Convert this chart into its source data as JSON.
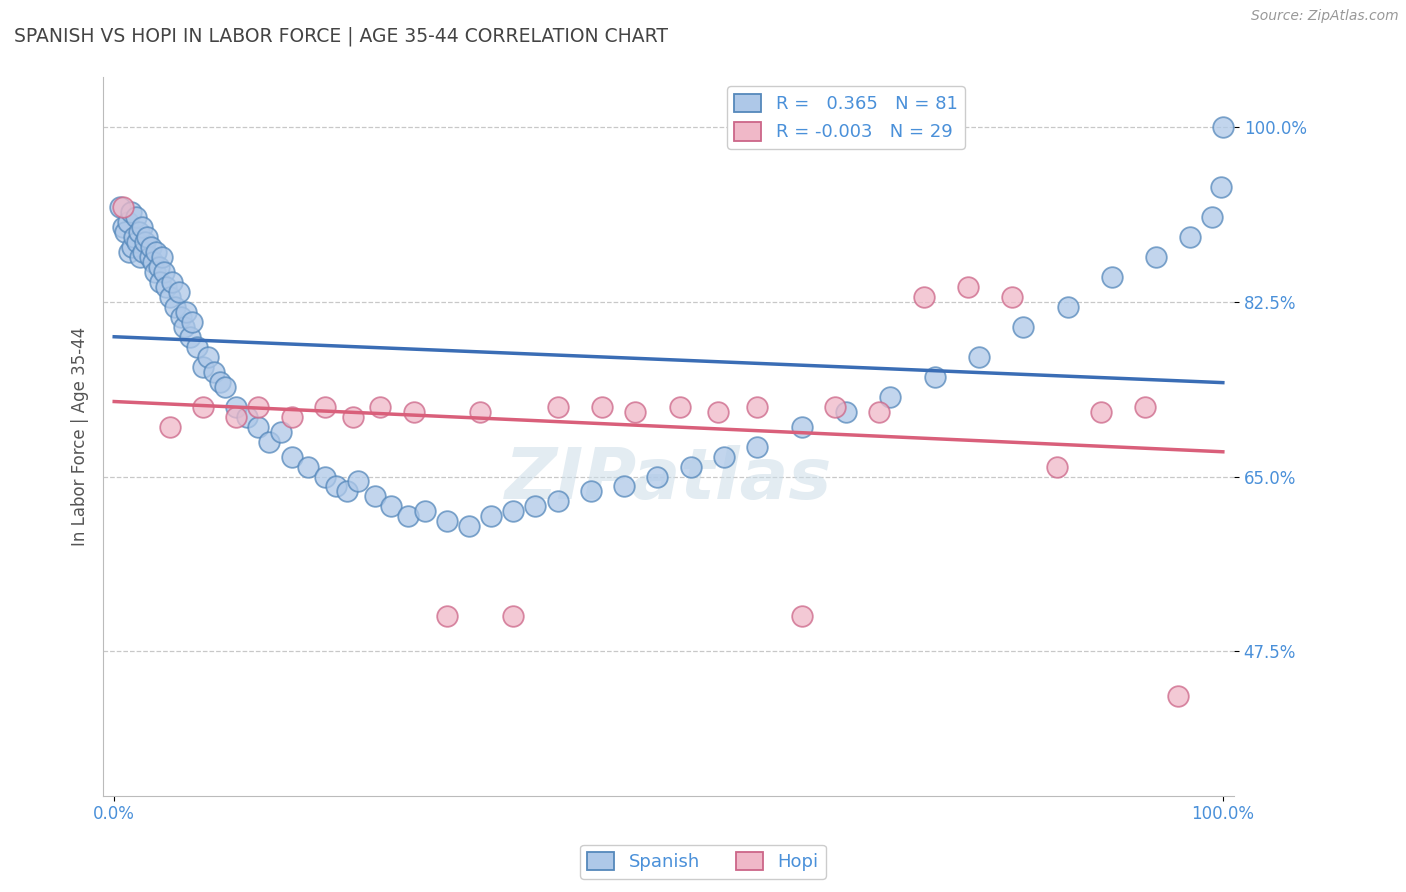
{
  "title": "SPANISH VS HOPI IN LABOR FORCE | AGE 35-44 CORRELATION CHART",
  "source": "Source: ZipAtlas.com",
  "ylabel": "In Labor Force | Age 35-44",
  "spanish_R": 0.365,
  "spanish_N": 81,
  "hopi_R": -0.003,
  "hopi_N": 29,
  "blue_fill": "#aec8e8",
  "blue_edge": "#5588bb",
  "pink_fill": "#f0b8c8",
  "pink_edge": "#cc6688",
  "blue_line_color": "#3a6db5",
  "pink_line_color": "#d95f7a",
  "background_color": "#ffffff",
  "grid_color": "#c8c8c8",
  "tick_color": "#4a90d9",
  "title_color": "#444444",
  "ylabel_color": "#555555",
  "watermark": "ZIPatlas",
  "xlim": [
    -0.01,
    1.01
  ],
  "ylim": [
    0.33,
    1.05
  ],
  "ytick_positions": [
    0.475,
    0.65,
    0.825,
    1.0
  ],
  "ytick_labels": [
    "47.5%",
    "65.0%",
    "82.5%",
    "100.0%"
  ],
  "xtick_positions": [
    0.0,
    1.0
  ],
  "xtick_labels": [
    "0.0%",
    "100.0%"
  ],
  "spanish_x": [
    0.005,
    0.008,
    0.01,
    0.012,
    0.013,
    0.015,
    0.016,
    0.018,
    0.02,
    0.021,
    0.022,
    0.023,
    0.025,
    0.026,
    0.028,
    0.03,
    0.032,
    0.033,
    0.035,
    0.037,
    0.038,
    0.04,
    0.041,
    0.043,
    0.045,
    0.047,
    0.05,
    0.052,
    0.055,
    0.058,
    0.06,
    0.063,
    0.065,
    0.068,
    0.07,
    0.075,
    0.08,
    0.085,
    0.09,
    0.095,
    0.1,
    0.11,
    0.12,
    0.13,
    0.14,
    0.15,
    0.16,
    0.175,
    0.19,
    0.2,
    0.21,
    0.22,
    0.235,
    0.25,
    0.265,
    0.28,
    0.3,
    0.32,
    0.34,
    0.36,
    0.38,
    0.4,
    0.43,
    0.46,
    0.49,
    0.52,
    0.55,
    0.58,
    0.62,
    0.66,
    0.7,
    0.74,
    0.78,
    0.82,
    0.86,
    0.9,
    0.94,
    0.97,
    0.99,
    0.998,
    1.0
  ],
  "spanish_y": [
    0.92,
    0.9,
    0.895,
    0.905,
    0.875,
    0.915,
    0.88,
    0.89,
    0.91,
    0.885,
    0.895,
    0.87,
    0.9,
    0.875,
    0.885,
    0.89,
    0.87,
    0.88,
    0.865,
    0.855,
    0.875,
    0.86,
    0.845,
    0.87,
    0.855,
    0.84,
    0.83,
    0.845,
    0.82,
    0.835,
    0.81,
    0.8,
    0.815,
    0.79,
    0.805,
    0.78,
    0.76,
    0.77,
    0.755,
    0.745,
    0.74,
    0.72,
    0.71,
    0.7,
    0.685,
    0.695,
    0.67,
    0.66,
    0.65,
    0.64,
    0.635,
    0.645,
    0.63,
    0.62,
    0.61,
    0.615,
    0.605,
    0.6,
    0.61,
    0.615,
    0.62,
    0.625,
    0.635,
    0.64,
    0.65,
    0.66,
    0.67,
    0.68,
    0.7,
    0.715,
    0.73,
    0.75,
    0.77,
    0.8,
    0.82,
    0.85,
    0.87,
    0.89,
    0.91,
    0.94,
    1.0
  ],
  "hopi_x": [
    0.008,
    0.05,
    0.08,
    0.11,
    0.13,
    0.16,
    0.19,
    0.215,
    0.24,
    0.27,
    0.3,
    0.33,
    0.36,
    0.4,
    0.44,
    0.47,
    0.51,
    0.545,
    0.58,
    0.62,
    0.65,
    0.69,
    0.73,
    0.77,
    0.81,
    0.85,
    0.89,
    0.93,
    0.96
  ],
  "hopi_y": [
    0.92,
    0.7,
    0.72,
    0.71,
    0.72,
    0.71,
    0.72,
    0.71,
    0.72,
    0.715,
    0.51,
    0.715,
    0.51,
    0.72,
    0.72,
    0.715,
    0.72,
    0.715,
    0.72,
    0.51,
    0.72,
    0.715,
    0.83,
    0.84,
    0.83,
    0.66,
    0.715,
    0.72,
    0.43
  ]
}
